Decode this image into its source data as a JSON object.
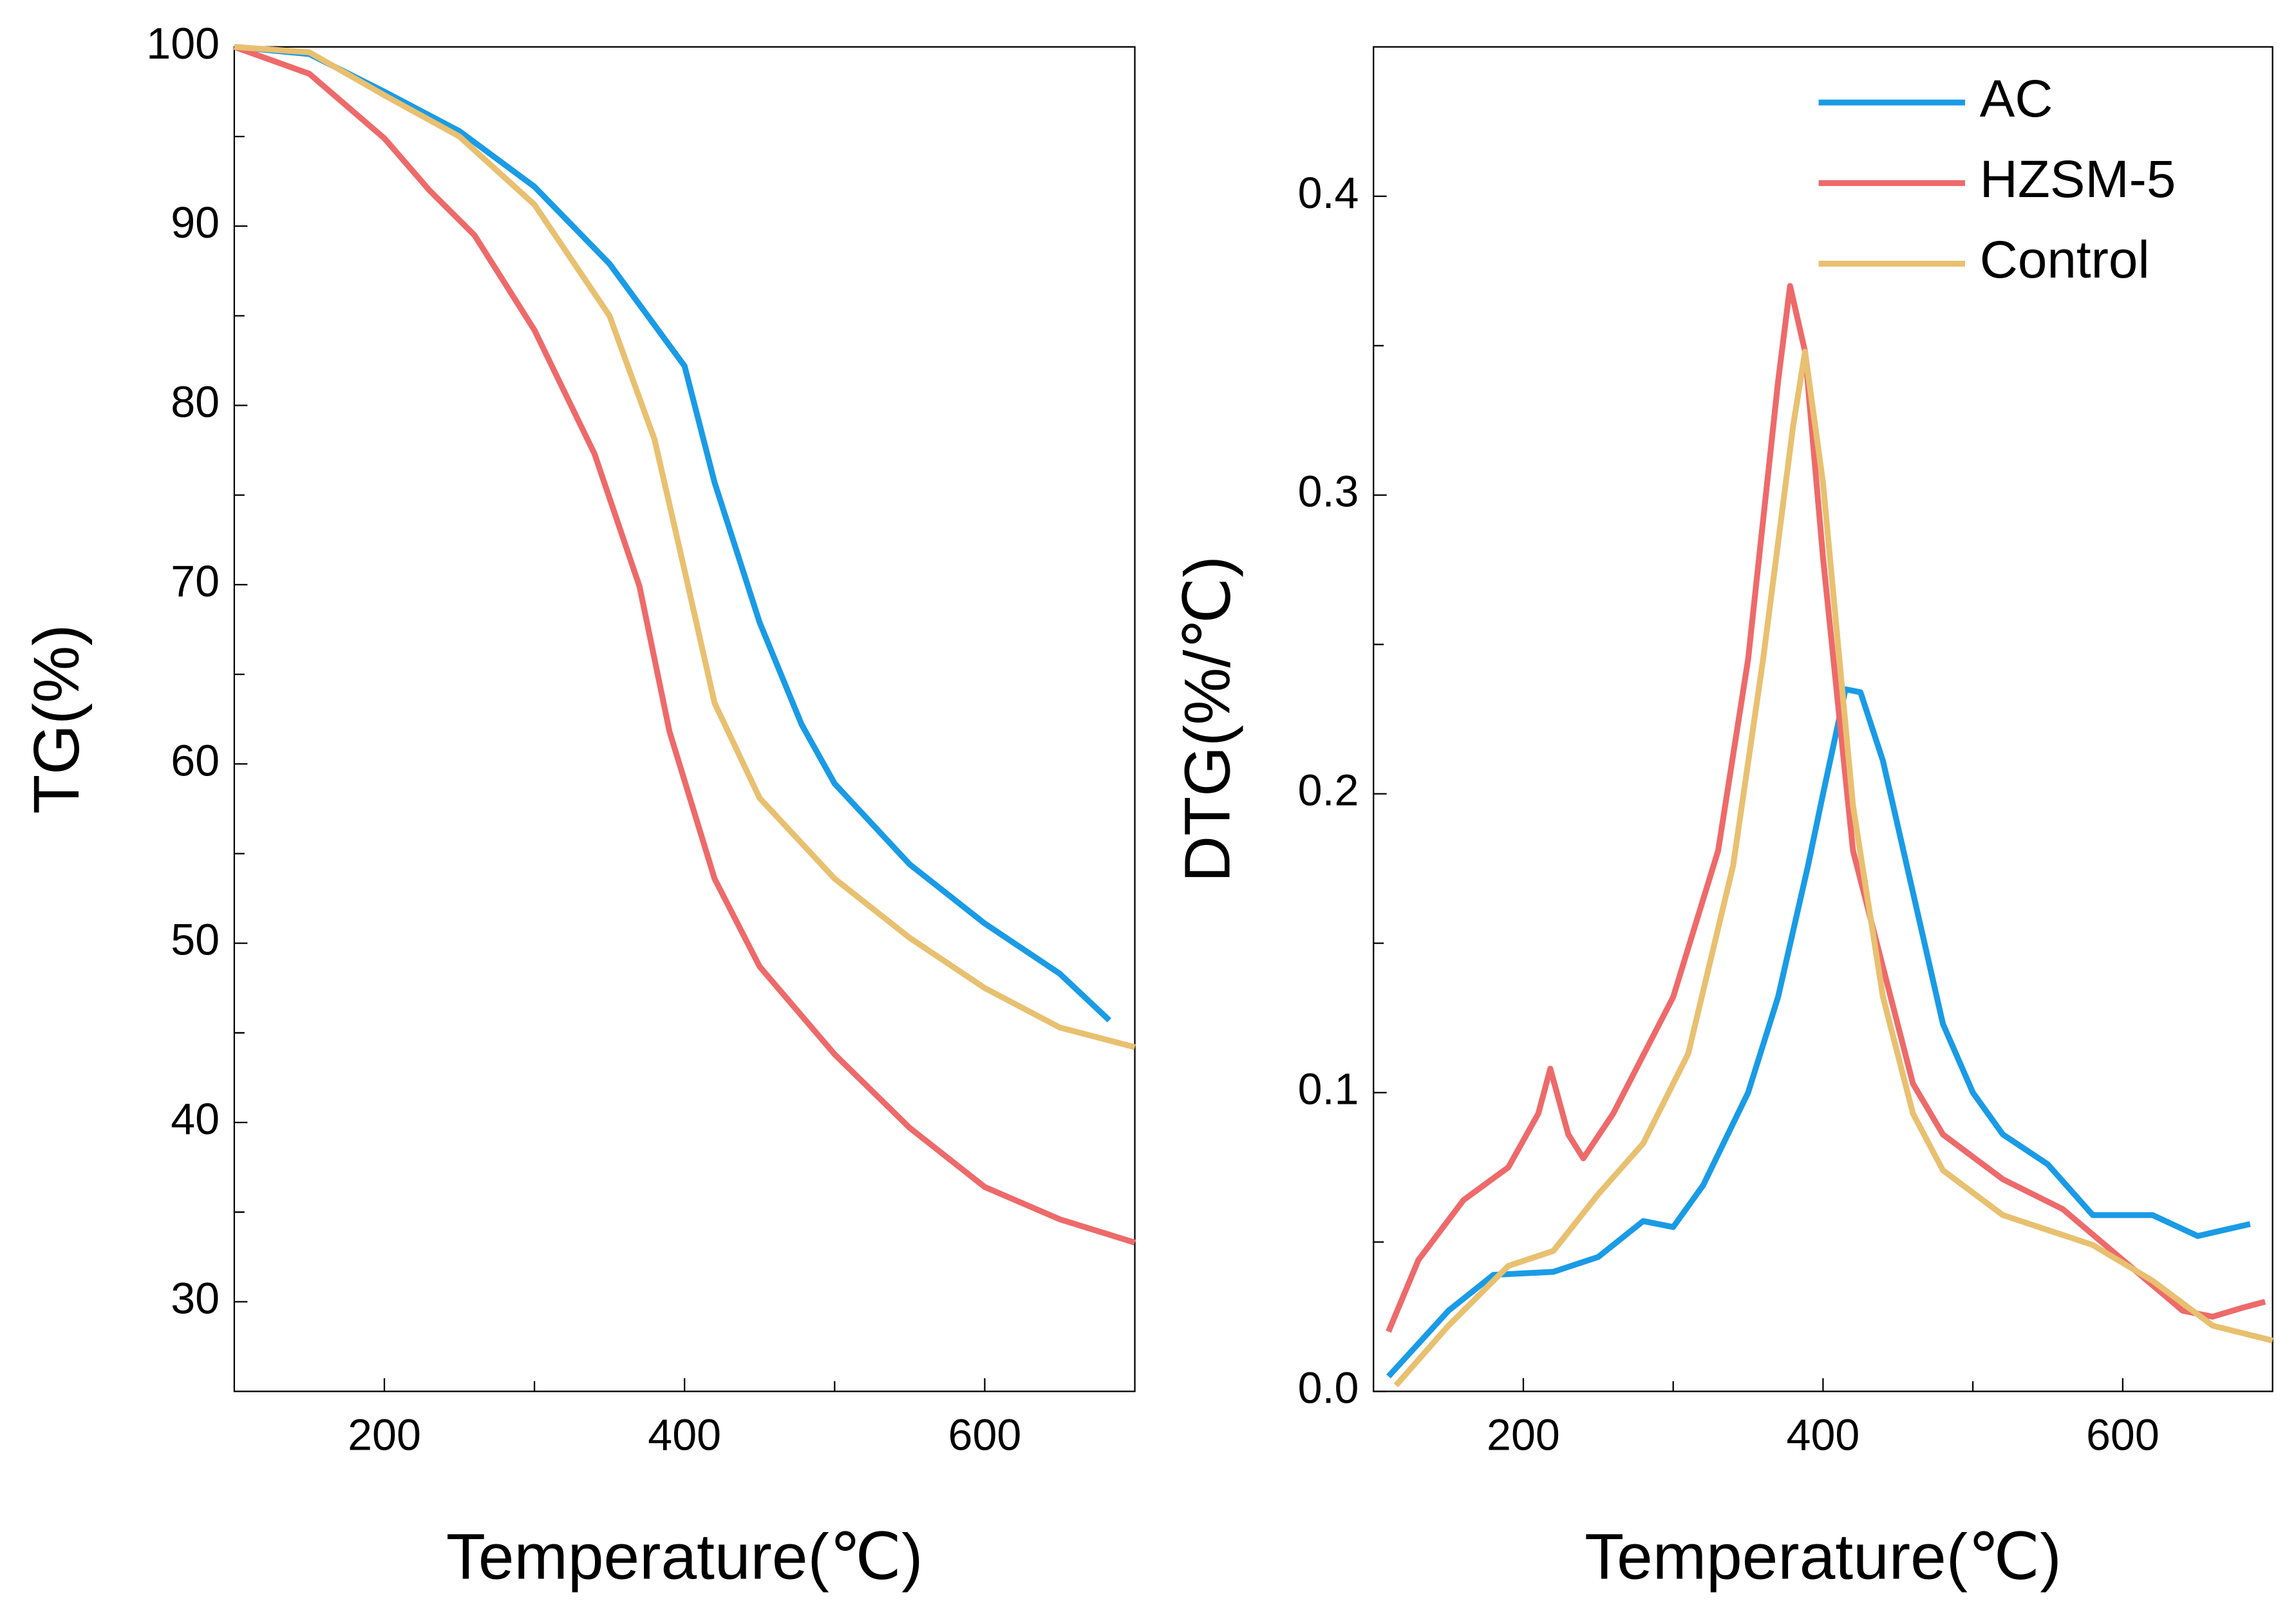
{
  "chart_data": [
    {
      "type": "line",
      "ylabel": "TG(%)",
      "xlabel": "Temperature(℃)",
      "xlim": [
        100,
        700
      ],
      "ylim": [
        25,
        100
      ],
      "xticks": [
        200,
        400,
        600
      ],
      "minor_xticks": [
        300,
        500
      ],
      "yticks": [
        30,
        40,
        50,
        60,
        70,
        80,
        90,
        100
      ],
      "minor_yticks": [
        35,
        45,
        55,
        65,
        75,
        85,
        95
      ],
      "series": [
        {
          "color": "#1a9be6",
          "x": [
            100,
            150,
            200,
            250,
            300,
            350,
            400,
            420,
            450,
            478,
            500,
            550,
            600,
            650,
            683
          ],
          "values": [
            100,
            99.6,
            97.5,
            95.3,
            92.2,
            87.9,
            82.2,
            75.7,
            67.9,
            62.2,
            58.9,
            54.4,
            51.1,
            48.3,
            45.7
          ]
        },
        {
          "color": "#ee6a6a",
          "x": [
            100,
            150,
            200,
            230,
            260,
            300,
            340,
            370,
            390,
            420,
            450,
            500,
            550,
            600,
            650,
            700
          ],
          "values": [
            100,
            98.5,
            94.9,
            92,
            89.5,
            84.2,
            77.3,
            69.9,
            61.8,
            53.6,
            48.7,
            43.8,
            39.7,
            36.4,
            34.6,
            33.3
          ]
        },
        {
          "color": "#e8c070",
          "x": [
            100,
            150,
            200,
            250,
            300,
            350,
            380,
            400,
            420,
            450,
            500,
            550,
            600,
            650,
            700
          ],
          "values": [
            100,
            99.7,
            97.3,
            95.0,
            91.2,
            85,
            78.1,
            70.8,
            63.4,
            58.1,
            53.6,
            50.3,
            47.5,
            45.3,
            44.2
          ]
        }
      ]
    },
    {
      "type": "line",
      "ylabel": "DTG(%/℃)",
      "xlabel": "Temperature(℃)",
      "xlim": [
        100,
        700
      ],
      "ylim": [
        0,
        0.45
      ],
      "xticks": [
        200,
        400,
        600
      ],
      "minor_xticks": [
        300,
        500
      ],
      "yticks": [
        {
          "value": 0,
          "label": "0.0"
        },
        0.1,
        0.2,
        0.3,
        0.4
      ],
      "minor_yticks": [
        0.05,
        0.15,
        0.25,
        0.35
      ],
      "legend": "upper right",
      "series": [
        {
          "name": "AC",
          "color": "#1a9be6",
          "x": [
            110,
            150,
            180,
            220,
            250,
            280,
            300,
            320,
            350,
            370,
            390,
            400,
            415,
            425,
            440,
            460,
            480,
            500,
            520,
            550,
            580,
            620,
            650,
            685
          ],
          "values": [
            0.005,
            0.027,
            0.039,
            0.04,
            0.045,
            0.057,
            0.055,
            0.069,
            0.1,
            0.132,
            0.176,
            0.2,
            0.235,
            0.234,
            0.211,
            0.167,
            0.123,
            0.1,
            0.086,
            0.076,
            0.059,
            0.059,
            0.052,
            0.056
          ]
        },
        {
          "name": "HZSM-5",
          "color": "#ee6a6a",
          "x": [
            110,
            130,
            160,
            190,
            210,
            218,
            230,
            240,
            260,
            300,
            330,
            350,
            370,
            378,
            388,
            400,
            420,
            440,
            460,
            480,
            520,
            560,
            600,
            640,
            660,
            680,
            695
          ],
          "values": [
            0.02,
            0.044,
            0.064,
            0.075,
            0.093,
            0.108,
            0.086,
            0.078,
            0.093,
            0.132,
            0.181,
            0.245,
            0.338,
            0.37,
            0.348,
            0.279,
            0.181,
            0.142,
            0.103,
            0.086,
            0.071,
            0.061,
            0.044,
            0.027,
            0.025,
            0.028,
            0.03
          ]
        },
        {
          "name": "Control",
          "color": "#e8c070",
          "x": [
            115,
            150,
            190,
            220,
            250,
            280,
            310,
            340,
            360,
            380,
            388,
            400,
            420,
            440,
            460,
            480,
            520,
            580,
            620,
            660,
            700
          ],
          "values": [
            0.002,
            0.022,
            0.042,
            0.047,
            0.066,
            0.083,
            0.113,
            0.176,
            0.245,
            0.323,
            0.348,
            0.304,
            0.196,
            0.132,
            0.093,
            0.074,
            0.059,
            0.049,
            0.037,
            0.022,
            0.017
          ]
        }
      ]
    }
  ]
}
